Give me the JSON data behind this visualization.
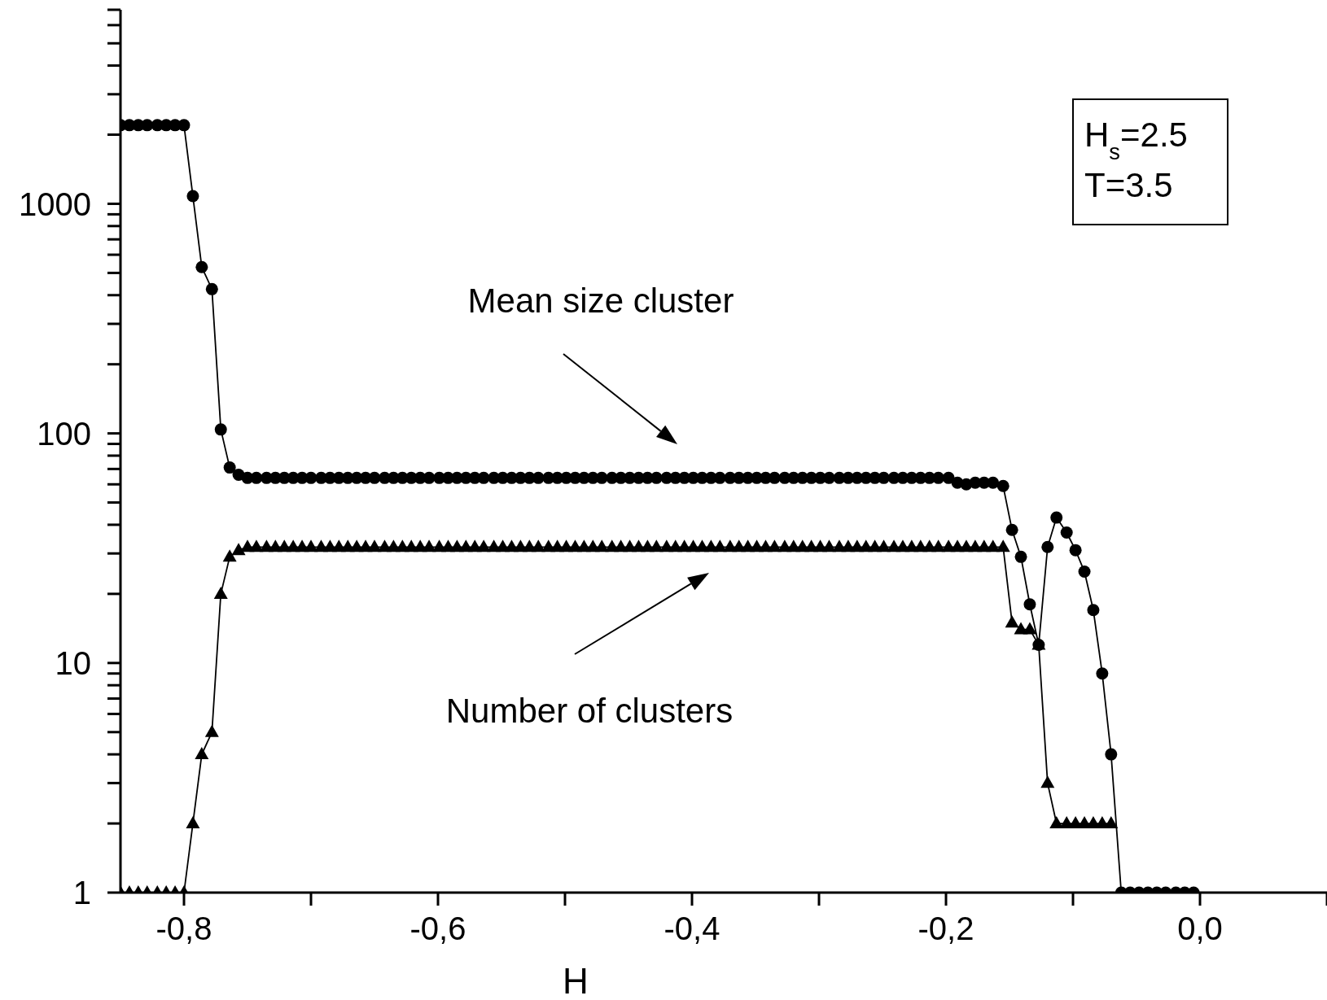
{
  "chart_data": {
    "type": "line",
    "xlabel": "H",
    "x": [
      -0.85,
      -0.843,
      -0.836,
      -0.829,
      -0.821,
      -0.814,
      -0.807,
      -0.8,
      -0.793,
      -0.786,
      -0.778,
      -0.771,
      -0.764,
      -0.757,
      -0.75,
      -0.743,
      -0.735,
      -0.728,
      -0.721,
      -0.714,
      -0.707,
      -0.7,
      -0.692,
      -0.685,
      -0.678,
      -0.671,
      -0.664,
      -0.657,
      -0.65,
      -0.642,
      -0.635,
      -0.628,
      -0.621,
      -0.614,
      -0.607,
      -0.599,
      -0.592,
      -0.585,
      -0.578,
      -0.571,
      -0.564,
      -0.556,
      -0.549,
      -0.542,
      -0.535,
      -0.528,
      -0.521,
      -0.513,
      -0.506,
      -0.499,
      -0.492,
      -0.485,
      -0.478,
      -0.471,
      -0.463,
      -0.456,
      -0.449,
      -0.442,
      -0.435,
      -0.428,
      -0.42,
      -0.413,
      -0.406,
      -0.399,
      -0.392,
      -0.385,
      -0.378,
      -0.37,
      -0.363,
      -0.356,
      -0.349,
      -0.342,
      -0.335,
      -0.327,
      -0.32,
      -0.313,
      -0.306,
      -0.299,
      -0.292,
      -0.284,
      -0.277,
      -0.27,
      -0.263,
      -0.256,
      -0.249,
      -0.241,
      -0.234,
      -0.227,
      -0.22,
      -0.213,
      -0.206,
      -0.198,
      -0.191,
      -0.184,
      -0.177,
      -0.17,
      -0.163,
      -0.155,
      -0.148,
      -0.141,
      -0.134,
      -0.127,
      -0.12,
      -0.113,
      -0.105,
      -0.098,
      -0.091,
      -0.084,
      -0.077,
      -0.07,
      -0.062,
      -0.055,
      -0.048,
      -0.041,
      -0.034,
      -0.027,
      -0.019,
      -0.012,
      -0.005
    ],
    "series": [
      {
        "color": "#000000",
        "marker": "circle",
        "values": [
          2200,
          2200,
          2200,
          2200,
          2200,
          2200,
          2200,
          2200,
          1080,
          530,
          425,
          104,
          71,
          66,
          64,
          64,
          64,
          64,
          64,
          64,
          64,
          64,
          64,
          64,
          64,
          64,
          64,
          64,
          64,
          64,
          64,
          64,
          64,
          64,
          64,
          64,
          64,
          64,
          64,
          64,
          64,
          64,
          64,
          64,
          64,
          64,
          64,
          64,
          64,
          64,
          64,
          64,
          64,
          64,
          64,
          64,
          64,
          64,
          64,
          64,
          64,
          64,
          64,
          64,
          64,
          64,
          64,
          64,
          64,
          64,
          64,
          64,
          64,
          64,
          64,
          64,
          64,
          64,
          64,
          64,
          64,
          64,
          64,
          64,
          64,
          64,
          64,
          64,
          64,
          64,
          64,
          64,
          61,
          60,
          61,
          61,
          61,
          59,
          38,
          29,
          18,
          12,
          32,
          43,
          37,
          31,
          25,
          17,
          9,
          4,
          1,
          1,
          1,
          1,
          1,
          1,
          1,
          1,
          1
        ]
      },
      {
        "color": "#000000",
        "marker": "triangle",
        "values": [
          1,
          1,
          1,
          1,
          1,
          1,
          1,
          1,
          2,
          4,
          5,
          20,
          29,
          31,
          32,
          32,
          32,
          32,
          32,
          32,
          32,
          32,
          32,
          32,
          32,
          32,
          32,
          32,
          32,
          32,
          32,
          32,
          32,
          32,
          32,
          32,
          32,
          32,
          32,
          32,
          32,
          32,
          32,
          32,
          32,
          32,
          32,
          32,
          32,
          32,
          32,
          32,
          32,
          32,
          32,
          32,
          32,
          32,
          32,
          32,
          32,
          32,
          32,
          32,
          32,
          32,
          32,
          32,
          32,
          32,
          32,
          32,
          32,
          32,
          32,
          32,
          32,
          32,
          32,
          32,
          32,
          32,
          32,
          32,
          32,
          32,
          32,
          32,
          32,
          32,
          32,
          32,
          32,
          32,
          32,
          32,
          32,
          32,
          15,
          14,
          14,
          12,
          3,
          2,
          2,
          2,
          2,
          2,
          2,
          2,
          null,
          null,
          null,
          null,
          null,
          null,
          null,
          null,
          null
        ]
      }
    ],
    "xlim": [
      -0.85,
      0.1
    ],
    "xticks": [
      {
        "value": -0.8,
        "label": "-0,8"
      },
      {
        "value": -0.7,
        "label": null
      },
      {
        "value": -0.6,
        "label": "-0,6"
      },
      {
        "value": -0.5,
        "label": null
      },
      {
        "value": -0.4,
        "label": "-0,4"
      },
      {
        "value": -0.3,
        "label": null
      },
      {
        "value": -0.2,
        "label": "-0,2"
      },
      {
        "value": -0.1,
        "label": null
      },
      {
        "value": 0.0,
        "label": "0,0"
      },
      {
        "value": 0.1,
        "label": null
      }
    ],
    "ylim": [
      1,
      7000
    ],
    "log": true,
    "yticks": [
      1,
      {
        "value": 2,
        "label": null
      },
      {
        "value": 3,
        "label": null
      },
      {
        "value": 4,
        "label": null
      },
      {
        "value": 5,
        "label": null
      },
      {
        "value": 6,
        "label": null
      },
      {
        "value": 7,
        "label": null
      },
      {
        "value": 8,
        "label": null
      },
      {
        "value": 9,
        "label": null
      },
      10,
      {
        "value": 20,
        "label": null
      },
      {
        "value": 30,
        "label": null
      },
      {
        "value": 40,
        "label": null
      },
      {
        "value": 50,
        "label": null
      },
      {
        "value": 60,
        "label": null
      },
      {
        "value": 70,
        "label": null
      },
      {
        "value": 80,
        "label": null
      },
      {
        "value": 90,
        "label": null
      },
      100,
      {
        "value": 200,
        "label": null
      },
      {
        "value": 300,
        "label": null
      },
      {
        "value": 400,
        "label": null
      },
      {
        "value": 500,
        "label": null
      },
      {
        "value": 600,
        "label": null
      },
      {
        "value": 700,
        "label": null
      },
      {
        "value": 800,
        "label": null
      },
      {
        "value": 900,
        "label": null
      },
      1000,
      {
        "value": 2000,
        "label": null
      },
      {
        "value": 3000,
        "label": null
      },
      {
        "value": 4000,
        "label": null
      },
      {
        "value": 5000,
        "label": null
      },
      {
        "value": 6000,
        "label": null
      },
      {
        "value": 7000,
        "label": null
      }
    ],
    "annotations": [
      "Mean size cluster",
      "Number of clusters",
      "H$_{s}$=2.5",
      "T=3.5"
    ],
    "grid": false,
    "legend": false,
    "line_style": "solid"
  }
}
